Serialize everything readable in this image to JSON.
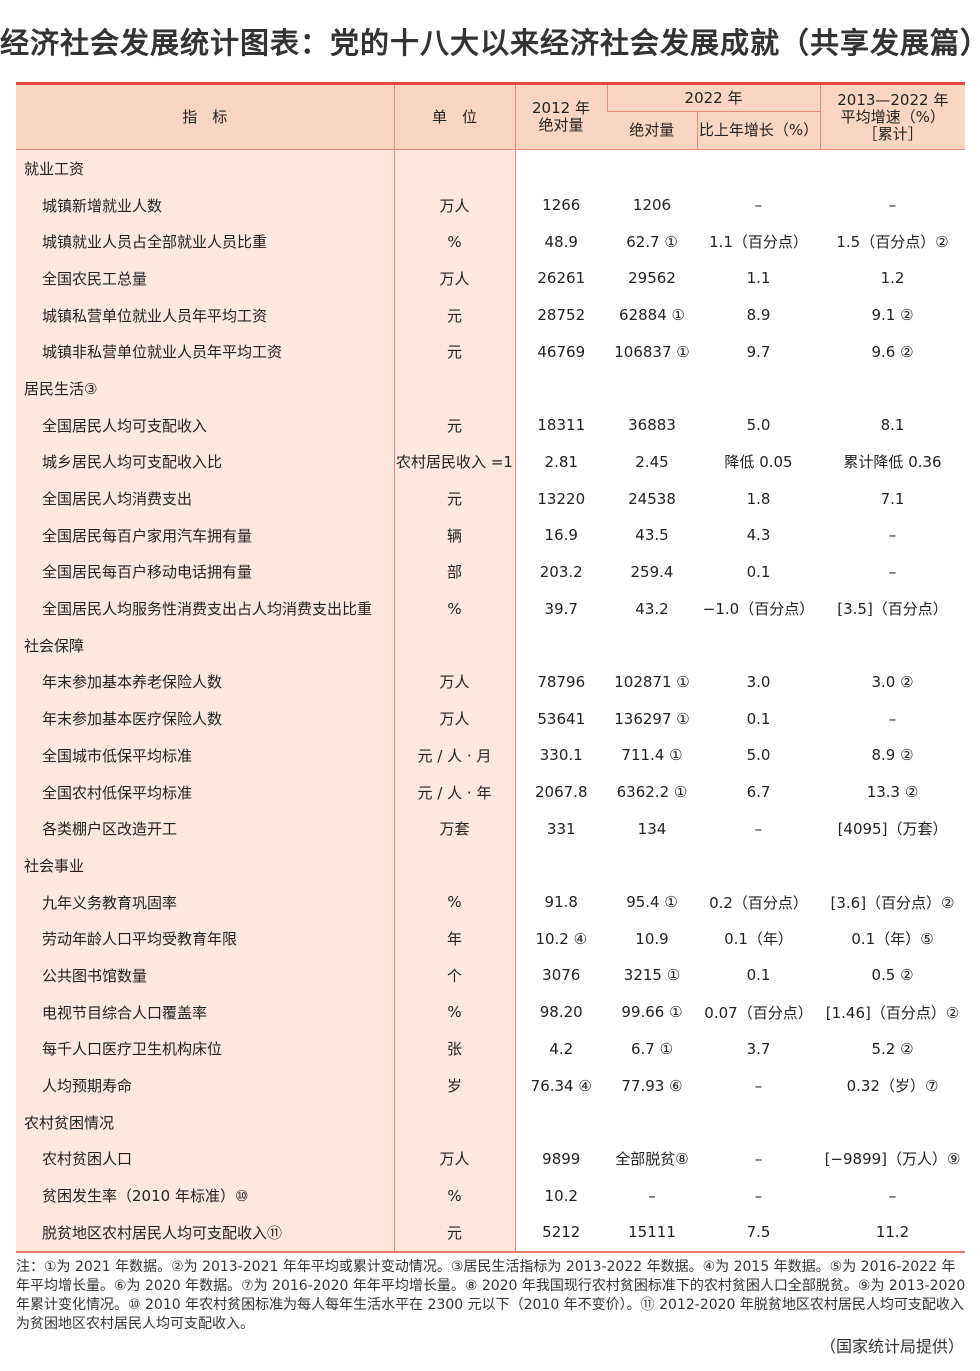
{
  "title": "经济社会发展统计图表：党的十八大以来经济社会发展成就（共享发展篇）",
  "header": {
    "indicator": "指　标",
    "unit": "单　位",
    "y2012": "2012 年\n绝对量",
    "y2022": "2022 年",
    "abs": "绝对量",
    "growth": "比上年增长（%）",
    "avg": "2013—2022 年\n平均增速（%）\n［累计］"
  },
  "rows": [
    {
      "s": "就业工资"
    },
    {
      "n": "城镇新增就业人数",
      "u": "万人",
      "a": "1266",
      "b": "1206",
      "c": "–",
      "d": "–"
    },
    {
      "n": "城镇就业人员占全部就业人员比重",
      "u": "%",
      "a": "48.9",
      "b": "62.7 ①",
      "c": "1.1（百分点）",
      "d": "1.5（百分点）②"
    },
    {
      "n": "全国农民工总量",
      "u": "万人",
      "a": "26261",
      "b": "29562",
      "c": "1.1",
      "d": "1.2"
    },
    {
      "n": "城镇私营单位就业人员年平均工资",
      "u": "元",
      "a": "28752",
      "b": "62884 ①",
      "c": "8.9",
      "d": "9.1 ②"
    },
    {
      "n": "城镇非私营单位就业人员年平均工资",
      "u": "元",
      "a": "46769",
      "b": "106837 ①",
      "c": "9.7",
      "d": "9.6 ②"
    },
    {
      "s": "居民生活③"
    },
    {
      "n": "全国居民人均可支配收入",
      "u": "元",
      "a": "18311",
      "b": "36883",
      "c": "5.0",
      "d": "8.1"
    },
    {
      "n": "城乡居民人均可支配收入比",
      "u": "农村居民收入 =1",
      "a": "2.81",
      "b": "2.45",
      "c": "降低 0.05",
      "d": "累计降低 0.36"
    },
    {
      "n": "全国居民人均消费支出",
      "u": "元",
      "a": "13220",
      "b": "24538",
      "c": "1.8",
      "d": "7.1"
    },
    {
      "n": "全国居民每百户家用汽车拥有量",
      "u": "辆",
      "a": "16.9",
      "b": "43.5",
      "c": "4.3",
      "d": "–"
    },
    {
      "n": "全国居民每百户移动电话拥有量",
      "u": "部",
      "a": "203.2",
      "b": "259.4",
      "c": "0.1",
      "d": "–"
    },
    {
      "n": "全国居民人均服务性消费支出占人均消费支出比重",
      "u": "%",
      "a": "39.7",
      "b": "43.2",
      "c": "−1.0（百分点）",
      "d": "[3.5]（百分点）"
    },
    {
      "s": "社会保障"
    },
    {
      "n": "年末参加基本养老保险人数",
      "u": "万人",
      "a": "78796",
      "b": "102871 ①",
      "c": "3.0",
      "d": "3.0 ②"
    },
    {
      "n": "年末参加基本医疗保险人数",
      "u": "万人",
      "a": "53641",
      "b": "136297 ①",
      "c": "0.1",
      "d": "–"
    },
    {
      "n": "全国城市低保平均标准",
      "u": "元 / 人 · 月",
      "a": "330.1",
      "b": "711.4 ①",
      "c": "5.0",
      "d": "8.9 ②"
    },
    {
      "n": "全国农村低保平均标准",
      "u": "元 / 人 · 年",
      "a": "2067.8",
      "b": "6362.2 ①",
      "c": "6.7",
      "d": "13.3 ②"
    },
    {
      "n": "各类棚户区改造开工",
      "u": "万套",
      "a": "331",
      "b": "134",
      "c": "–",
      "d": "[4095]（万套）"
    },
    {
      "s": "社会事业"
    },
    {
      "n": "九年义务教育巩固率",
      "u": "%",
      "a": "91.8",
      "b": "95.4 ①",
      "c": "0.2（百分点）",
      "d": "[3.6]（百分点）②"
    },
    {
      "n": "劳动年龄人口平均受教育年限",
      "u": "年",
      "a": "10.2 ④",
      "b": "10.9",
      "c": "0.1（年）",
      "d": "0.1（年）⑤"
    },
    {
      "n": "公共图书馆数量",
      "u": "个",
      "a": "3076",
      "b": "3215 ①",
      "c": "0.1",
      "d": "0.5 ②"
    },
    {
      "n": "电视节目综合人口覆盖率",
      "u": "%",
      "a": "98.20",
      "b": "99.66 ①",
      "c": "0.07（百分点）",
      "d": "[1.46]（百分点）②"
    },
    {
      "n": "每千人口医疗卫生机构床位",
      "u": "张",
      "a": "4.2",
      "b": "6.7 ①",
      "c": "3.7",
      "d": "5.2 ②"
    },
    {
      "n": "人均预期寿命",
      "u": "岁",
      "a": "76.34 ④",
      "b": "77.93 ⑥",
      "c": "–",
      "d": "0.32（岁）⑦"
    },
    {
      "s": "农村贫困情况"
    },
    {
      "n": "农村贫困人口",
      "u": "万人",
      "a": "9899",
      "b": "全部脱贫⑧",
      "c": "–",
      "d": "[−9899]（万人）⑨"
    },
    {
      "n": "贫困发生率（2010 年标准）⑩",
      "u": "%",
      "a": "10.2",
      "b": "–",
      "c": "–",
      "d": "–"
    },
    {
      "n": "脱贫地区农村居民人均可支配收入⑪",
      "u": "元",
      "a": "5212",
      "b": "15111",
      "c": "7.5",
      "d": "11.2"
    }
  ],
  "notes": "注：①为 2021 年数据。②为 2013-2021 年年平均或累计变动情况。③居民生活指标为 2013-2022 年数据。④为 2015 年数据。⑤为 2016-2022 年年平均增长量。⑥为 2020 年数据。⑦为 2016-2020 年年平均增长量。⑧ 2020 年我国现行农村贫困标准下的农村贫困人口全部脱贫。⑨为 2013-2020 年累计变化情况。⑩ 2010 年农村贫困标准为每人每年生活水平在 2300 元以下（2010 年不变价）。⑪ 2012-2020 年脱贫地区农村居民人均可支配收入为贫困地区农村居民人均可支配收入。",
  "source": "（国家统计局提供）",
  "colors": {
    "accent": "#e2483b",
    "header_bg": "#f9d5c2",
    "label_bg": "#fce8de"
  }
}
